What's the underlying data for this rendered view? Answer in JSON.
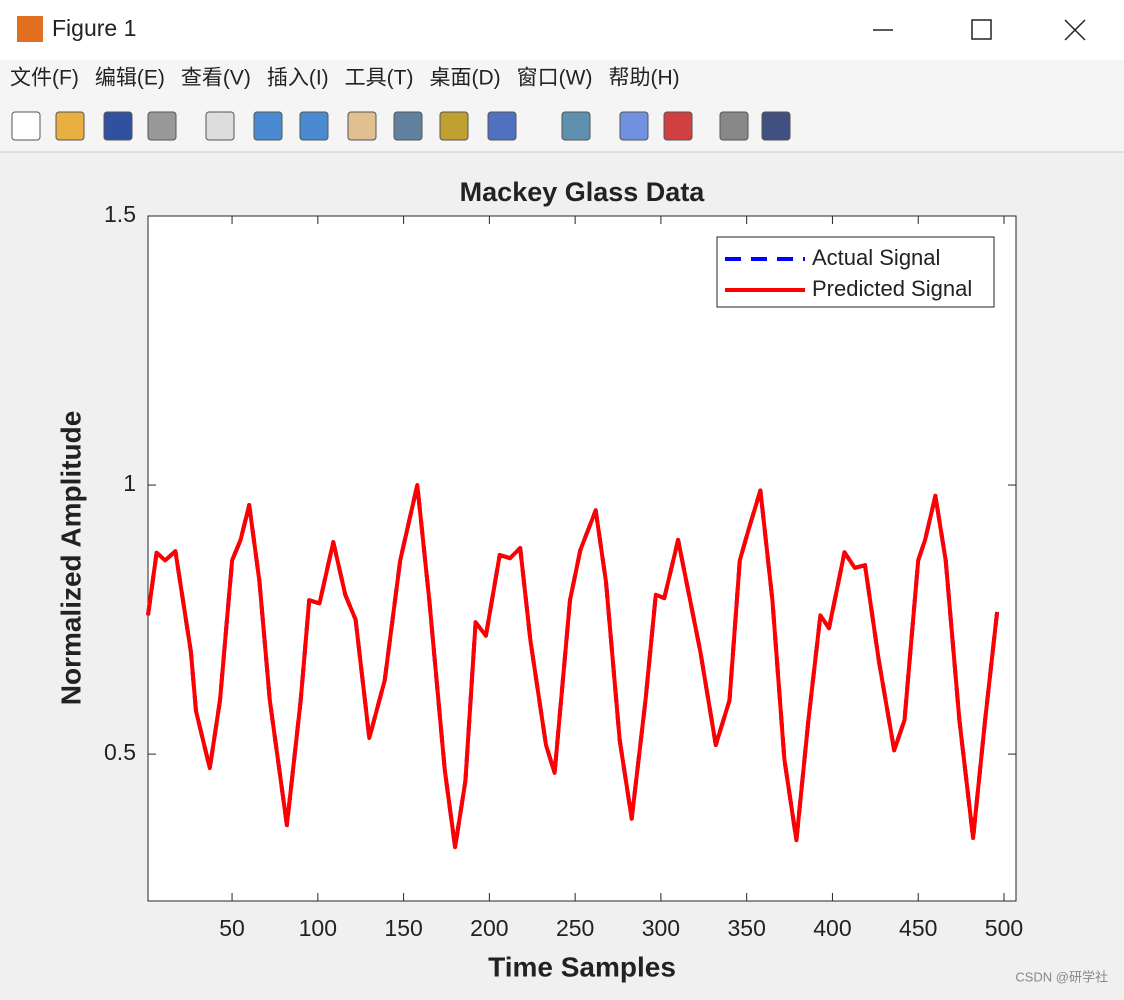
{
  "window": {
    "title": "Figure 1",
    "menu": [
      "文件(F)",
      "编辑(E)",
      "查看(V)",
      "插入(I)",
      "工具(T)",
      "桌面(D)",
      "窗口(W)",
      "帮助(H)"
    ],
    "watermark": "CSDN @研学社"
  },
  "chart_data": {
    "type": "line",
    "title": "Mackey Glass Data",
    "xlabel": "Time Samples",
    "ylabel": "Normalized Amplitude",
    "x": [
      1,
      6,
      11,
      17,
      26,
      29,
      37,
      43,
      50,
      55,
      60,
      66,
      72,
      82,
      90,
      95,
      101,
      109,
      116,
      122,
      130,
      139,
      148,
      158,
      165,
      174,
      180,
      186,
      192,
      198,
      206,
      212,
      218,
      224,
      233,
      238,
      247,
      253,
      262,
      268,
      276,
      283,
      291,
      297,
      302,
      310,
      317,
      323,
      332,
      340,
      346,
      351,
      358,
      365,
      372,
      379,
      386,
      393,
      398,
      407,
      413,
      419,
      427,
      436,
      442,
      450,
      454,
      460,
      466,
      474,
      482,
      489,
      496
    ],
    "series": [
      {
        "name": "Actual Signal",
        "color": "#0000ff",
        "dash": true,
        "values": [
          0.758,
          0.874,
          0.86,
          0.877,
          0.69,
          0.58,
          0.474,
          0.6,
          0.86,
          0.898,
          0.963,
          0.82,
          0.6,
          0.368,
          0.6,
          0.786,
          0.78,
          0.894,
          0.796,
          0.75,
          0.53,
          0.637,
          0.86,
          1.0,
          0.786,
          0.47,
          0.327,
          0.45,
          0.745,
          0.72,
          0.87,
          0.864,
          0.883,
          0.71,
          0.517,
          0.465,
          0.786,
          0.879,
          0.953,
          0.82,
          0.526,
          0.38,
          0.6,
          0.796,
          0.79,
          0.898,
          0.786,
          0.69,
          0.517,
          0.6,
          0.86,
          0.916,
          0.99,
          0.786,
          0.49,
          0.34,
          0.563,
          0.758,
          0.734,
          0.875,
          0.846,
          0.851,
          0.674,
          0.507,
          0.563,
          0.86,
          0.898,
          0.98,
          0.86,
          0.563,
          0.344,
          0.563,
          0.764
        ]
      },
      {
        "name": "Predicted Signal",
        "color": "#ff0000",
        "dash": false,
        "values": [
          0.758,
          0.874,
          0.86,
          0.877,
          0.69,
          0.58,
          0.474,
          0.6,
          0.86,
          0.898,
          0.963,
          0.82,
          0.6,
          0.368,
          0.6,
          0.786,
          0.78,
          0.894,
          0.796,
          0.75,
          0.53,
          0.637,
          0.86,
          1.0,
          0.786,
          0.47,
          0.327,
          0.45,
          0.745,
          0.72,
          0.87,
          0.864,
          0.883,
          0.71,
          0.517,
          0.465,
          0.786,
          0.879,
          0.953,
          0.82,
          0.526,
          0.38,
          0.6,
          0.796,
          0.79,
          0.898,
          0.786,
          0.69,
          0.517,
          0.6,
          0.86,
          0.916,
          0.99,
          0.786,
          0.49,
          0.34,
          0.563,
          0.758,
          0.734,
          0.875,
          0.846,
          0.851,
          0.674,
          0.507,
          0.563,
          0.86,
          0.898,
          0.98,
          0.86,
          0.563,
          0.344,
          0.563,
          0.764
        ]
      }
    ],
    "xlim": [
      1,
      507
    ],
    "ylim": [
      0.227,
      1.5
    ],
    "xticks": [
      50,
      100,
      150,
      200,
      250,
      300,
      350,
      400,
      450,
      500
    ],
    "yticks": [
      0.5,
      1,
      1.5
    ],
    "legend": "northeast",
    "grid": false
  }
}
